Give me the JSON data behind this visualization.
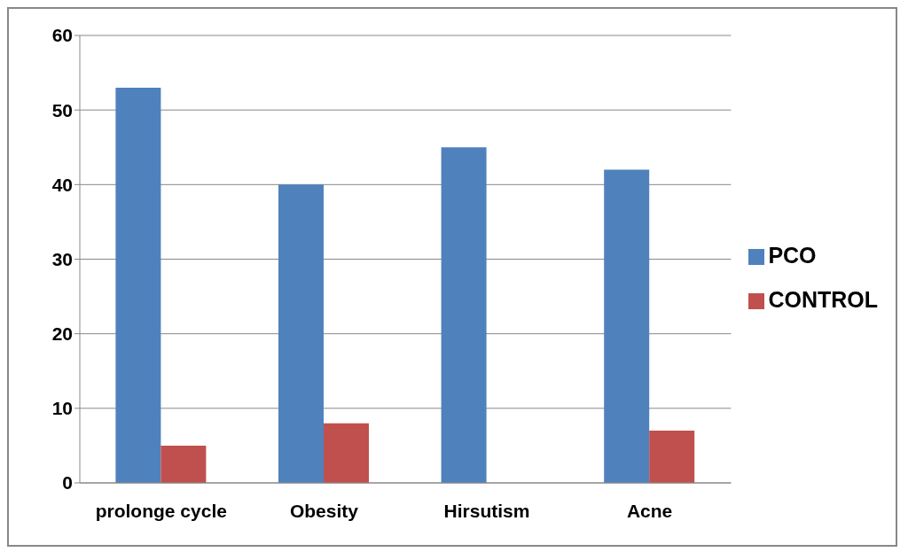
{
  "chart_data": {
    "type": "bar",
    "categories": [
      "prolonge cycle",
      "Obesity",
      "Hirsutism",
      "Acne"
    ],
    "series": [
      {
        "name": "PCO",
        "color": "#4f81bd",
        "values": [
          53,
          40,
          45,
          42
        ]
      },
      {
        "name": "CONTROL",
        "color": "#c0504d",
        "values": [
          5,
          8,
          0,
          7
        ]
      }
    ],
    "ylim": [
      0,
      60
    ],
    "yticks": [
      0,
      10,
      20,
      30,
      40,
      50,
      60
    ],
    "grid": "y",
    "legend": "right"
  }
}
